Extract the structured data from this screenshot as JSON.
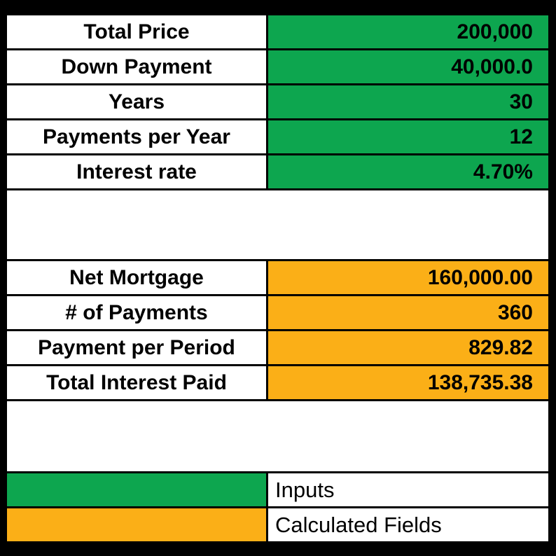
{
  "colors": {
    "input_green": "#0da64f",
    "calc_orange": "#fbaf17",
    "grid_black": "#000000",
    "cell_white": "#ffffff",
    "text_black": "#000000"
  },
  "inputs": [
    {
      "label": "Total Price",
      "value": "200,000"
    },
    {
      "label": "Down Payment",
      "value": "40,000.0"
    },
    {
      "label": "Years",
      "value": "30"
    },
    {
      "label": "Payments per Year",
      "value": "12"
    },
    {
      "label": "Interest rate",
      "value": "4.70%"
    }
  ],
  "calculated": [
    {
      "label": "Net Mortgage",
      "value": "160,000.00"
    },
    {
      "label": "# of Payments",
      "value": "360"
    },
    {
      "label": "Payment per Period",
      "value": "829.82"
    },
    {
      "label": "Total Interest Paid",
      "value": "138,735.38"
    }
  ],
  "legend": [
    {
      "swatch_color": "#0da64f",
      "label": "Inputs"
    },
    {
      "swatch_color": "#fbaf17",
      "label": "Calculated Fields"
    }
  ]
}
